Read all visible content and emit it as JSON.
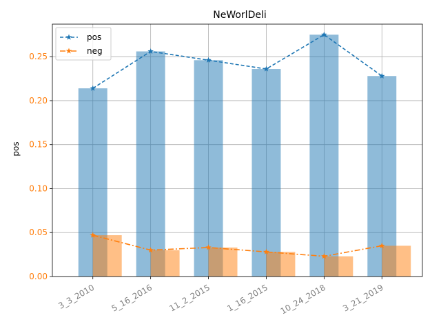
{
  "chart_data": {
    "type": "bar",
    "title": "NeWorlDeli",
    "xlabel": "",
    "ylabel": "pos",
    "categories": [
      "3_3_2010",
      "5_16_2016",
      "11_2_2015",
      "1_16_2015",
      "10_24_2018",
      "3_21_2019"
    ],
    "series": [
      {
        "name": "pos",
        "values": [
          0.214,
          0.256,
          0.246,
          0.236,
          0.275,
          0.228
        ],
        "color": "#1f77b4"
      },
      {
        "name": "neg",
        "values": [
          0.047,
          0.03,
          0.033,
          0.028,
          0.023,
          0.035
        ],
        "color": "#ff7f0e"
      }
    ],
    "ylim": [
      0,
      0.287
    ],
    "yticks": [
      "0.00",
      "0.05",
      "0.10",
      "0.15",
      "0.20",
      "0.25"
    ],
    "grid": true,
    "legend_position": "top-left",
    "colors": {
      "ytick_label": "#ff7f0e",
      "xtick_label": "#808080"
    }
  }
}
